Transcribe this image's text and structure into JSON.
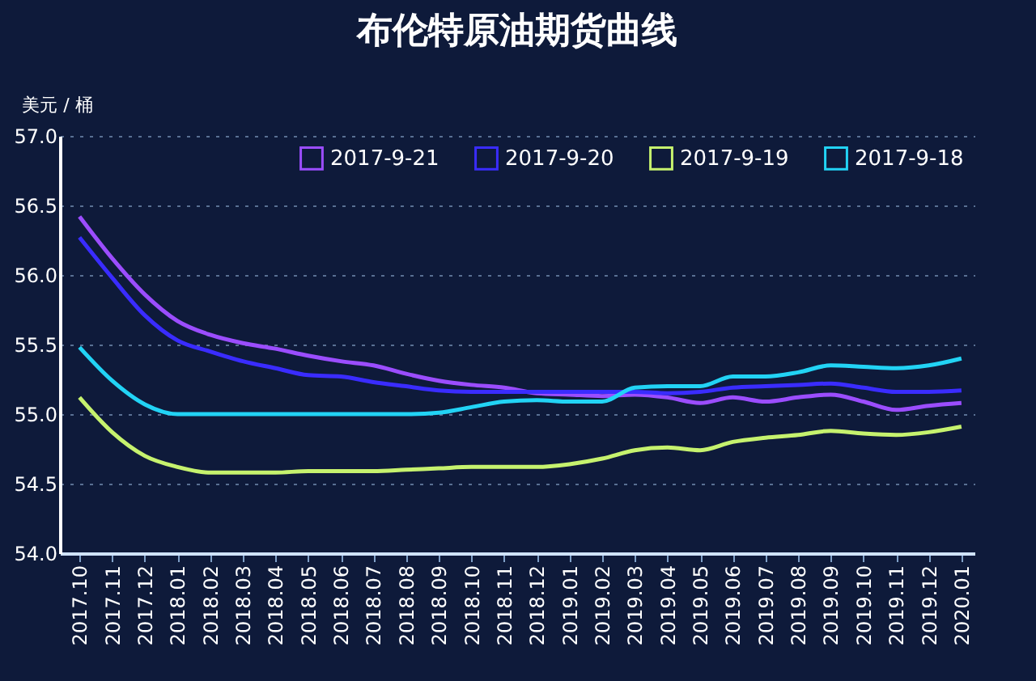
{
  "chart_data": {
    "type": "line",
    "title": "布伦特原油期货曲线",
    "ylabel": "美元 / 桶",
    "categories": [
      "2017.10",
      "2017.11",
      "2017.12",
      "2018.01",
      "2018.02",
      "2018.03",
      "2018.04",
      "2018.05",
      "2018.06",
      "2018.07",
      "2018.08",
      "2018.09",
      "2018.10",
      "2018.11",
      "2018.12",
      "2019.01",
      "2019.02",
      "2019.03",
      "2019.04",
      "2019.05",
      "2019.06",
      "2019.07",
      "2019.08",
      "2019.09",
      "2019.10",
      "2019.11",
      "2019.12",
      "2020.01"
    ],
    "series": [
      {
        "name": "2017-9-21",
        "color": "#9b4dff",
        "values": [
          56.42,
          56.12,
          55.86,
          55.67,
          55.57,
          55.51,
          55.47,
          55.42,
          55.38,
          55.35,
          55.29,
          55.24,
          55.21,
          55.19,
          55.15,
          55.14,
          55.13,
          55.14,
          55.12,
          55.08,
          55.12,
          55.09,
          55.12,
          55.14,
          55.09,
          55.03,
          55.06,
          55.08
        ]
      },
      {
        "name": "2017-9-20",
        "color": "#3a2cff",
        "values": [
          56.27,
          55.98,
          55.71,
          55.53,
          55.45,
          55.38,
          55.33,
          55.28,
          55.27,
          55.23,
          55.2,
          55.17,
          55.16,
          55.16,
          55.16,
          55.16,
          55.16,
          55.16,
          55.15,
          55.16,
          55.19,
          55.2,
          55.21,
          55.22,
          55.19,
          55.16,
          55.16,
          55.17
        ]
      },
      {
        "name": "2017-9-19",
        "color": "#c6f26e",
        "values": [
          55.12,
          54.87,
          54.7,
          54.62,
          54.58,
          54.58,
          54.58,
          54.59,
          54.59,
          54.59,
          54.6,
          54.61,
          54.62,
          54.62,
          54.62,
          54.64,
          54.68,
          54.74,
          54.76,
          54.74,
          54.8,
          54.83,
          54.85,
          54.88,
          54.86,
          54.85,
          54.87,
          54.91
        ]
      },
      {
        "name": "2017-9-18",
        "color": "#22d3f5",
        "values": [
          55.48,
          55.24,
          55.07,
          55.0,
          55.0,
          55.0,
          55.0,
          55.0,
          55.0,
          55.0,
          55.0,
          55.01,
          55.05,
          55.09,
          55.1,
          55.09,
          55.09,
          55.19,
          55.2,
          55.2,
          55.27,
          55.27,
          55.3,
          55.35,
          55.34,
          55.33,
          55.35,
          55.4
        ]
      }
    ],
    "ylim": [
      54,
      57
    ],
    "yticks": [
      {
        "value": 54,
        "label": "54.0"
      },
      {
        "value": 54.5,
        "label": "54.5"
      },
      {
        "value": 55,
        "label": "55.0"
      },
      {
        "value": 55.5,
        "label": "55.5"
      },
      {
        "value": 56,
        "label": "56.0"
      },
      {
        "value": 56.5,
        "label": "56.5"
      },
      {
        "value": 57,
        "label": "57.0"
      }
    ],
    "grid": "y",
    "legend": "top right",
    "marker": "none",
    "line_style": "solid"
  }
}
